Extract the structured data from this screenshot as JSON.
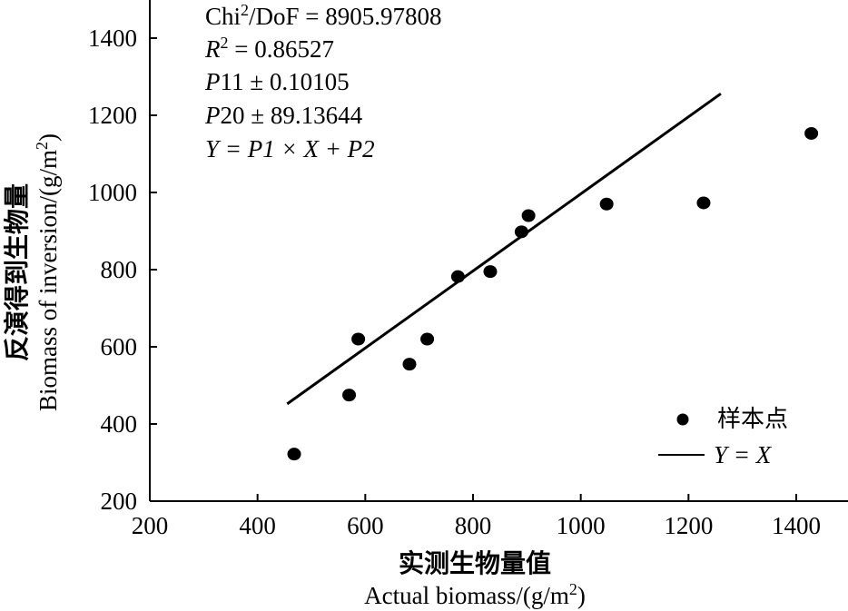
{
  "chart_data": {
    "type": "scatter",
    "xlabel_zh": "实测生物量值",
    "xlabel_en": "Actual biomass/(g/m",
    "xlabel_en_sup": "2",
    "xlabel_en_tail": ")",
    "ylabel_zh": "反演得到生物量",
    "ylabel_en": "Biomass of inversion/(g/m",
    "ylabel_en_sup": "2",
    "ylabel_en_tail": ")",
    "xlim": [
      200,
      1500
    ],
    "ylim": [
      200,
      1500
    ],
    "xticks": [
      "200",
      "400",
      "600",
      "800",
      "1000",
      "1200",
      "1400"
    ],
    "yticks": [
      "200",
      "400",
      "600",
      "800",
      "1000",
      "1200",
      "1400"
    ],
    "series": [
      {
        "name": "样本点",
        "kind": "points",
        "x": [
          468,
          570,
          587,
          682,
          715,
          772,
          832,
          890,
          903,
          1048,
          1228,
          1428
        ],
        "y": [
          322,
          475,
          620,
          555,
          620,
          782,
          795,
          898,
          940,
          970,
          973,
          1153
        ]
      },
      {
        "name": "Y = X",
        "kind": "line",
        "x": [
          455,
          1260
        ],
        "y": [
          452,
          1256
        ]
      }
    ],
    "annotations": {
      "chi_line": "Chi",
      "chi_sup": "2",
      "chi_rest": "/DoF = 8905.97808",
      "r2_var": "R",
      "r2_sup": "2",
      "r2_rest": " = 0.86527",
      "p1_var": "P",
      "p1_rest": "11 ± 0.10105",
      "p2_var": "P",
      "p2_rest": "20 ± 89.13644",
      "eq": "Y = P1 × X + P2"
    },
    "legend": {
      "points_label": "样本点",
      "line_label": "Y = X",
      "position": "lower-right"
    },
    "grid": false
  }
}
